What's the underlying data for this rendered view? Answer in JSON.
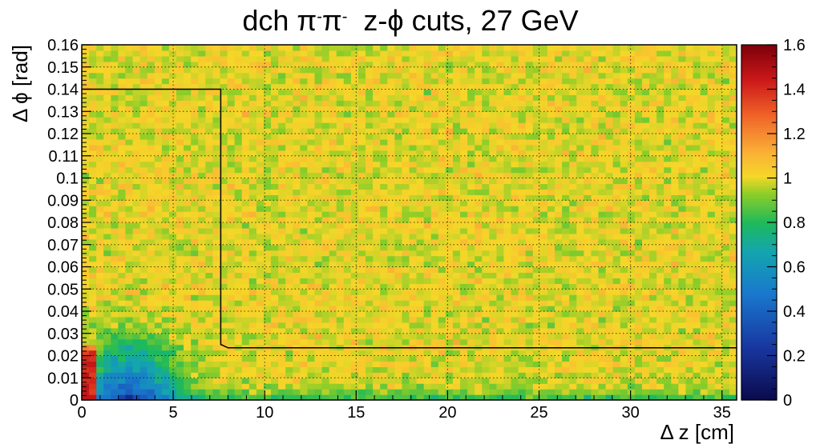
{
  "chart_data": {
    "type": "heatmap",
    "title": {
      "prefix": "dch ",
      "pi": "π",
      "minus": "-",
      "rest": "  z-ϕ cuts, 27 GeV"
    },
    "xlabel": "Δ z [cm]",
    "ylabel": "Δ ϕ [rad]",
    "xlim": [
      0,
      35.8
    ],
    "ylim": [
      0,
      0.16
    ],
    "zlim": [
      0,
      1.6
    ],
    "grid": true,
    "colormap": "rainbow (dark blue → cyan → green → yellow → orange → red → dark red)",
    "x_ticks": [
      "0",
      "5",
      "10",
      "15",
      "20",
      "25",
      "30",
      "35"
    ],
    "y_ticks": [
      "0",
      "0.01",
      "0.02",
      "0.03",
      "0.04",
      "0.05",
      "0.06",
      "0.07",
      "0.08",
      "0.09",
      "0.1",
      "0.11",
      "0.12",
      "0.13",
      "0.14",
      "0.15",
      "0.16"
    ],
    "z_ticks": [
      "0",
      "0.2",
      "0.4",
      "0.6",
      "0.8",
      "1",
      "1.2",
      "1.4",
      "1.6"
    ],
    "bins": {
      "nx": 90,
      "ny": 64
    },
    "regions": [
      {
        "description": "uniform background",
        "value": 1.0
      },
      {
        "description": "red band at Δz < 0.7 cm, Δϕ < 0.025 rad",
        "value": 1.4
      },
      {
        "description": "blue/green depletion around Δz ≈ 2–3 cm, Δϕ < 0.04 rad",
        "value": 0.45
      },
      {
        "description": "green strip along Δϕ < 0.008 rad",
        "value": 0.8
      }
    ],
    "cut_boundary": [
      [
        0,
        0.14
      ],
      [
        7.6,
        0.14
      ],
      [
        7.6,
        0.025
      ],
      [
        8.0,
        0.0235
      ],
      [
        35.8,
        0.0235
      ]
    ]
  }
}
